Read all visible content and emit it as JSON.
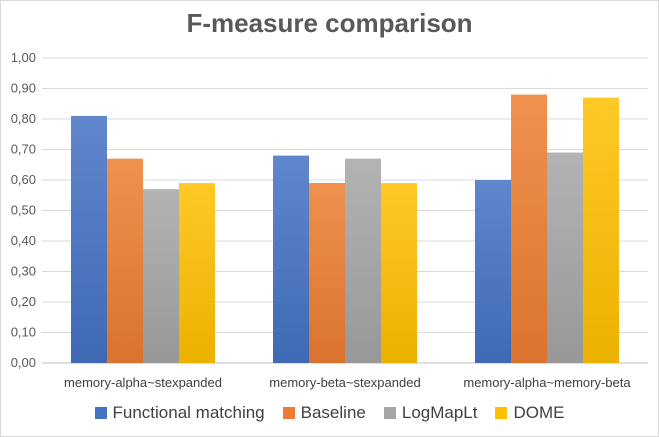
{
  "chart_data": {
    "type": "bar",
    "title": "F-measure comparison",
    "categories": [
      "memory-alpha~stexpanded",
      "memory-beta~stexpanded",
      "memory-alpha~memory-beta"
    ],
    "series": [
      {
        "name": "Functional matching",
        "values": [
          0.81,
          0.68,
          0.6
        ],
        "color": "#4472c4"
      },
      {
        "name": "Baseline",
        "values": [
          0.67,
          0.59,
          0.88
        ],
        "color": "#ed7d31"
      },
      {
        "name": "LogMapLt",
        "values": [
          0.57,
          0.67,
          0.69
        ],
        "color": "#a5a5a5"
      },
      {
        "name": "DOME",
        "values": [
          0.59,
          0.59,
          0.87
        ],
        "color": "#ffc000"
      }
    ],
    "ylim": [
      0,
      1
    ],
    "yticks": [
      "0,00",
      "0,10",
      "0,20",
      "0,30",
      "0,40",
      "0,50",
      "0,60",
      "0,70",
      "0,80",
      "0,90",
      "1,00"
    ],
    "grid": true,
    "legend_position": "bottom"
  }
}
